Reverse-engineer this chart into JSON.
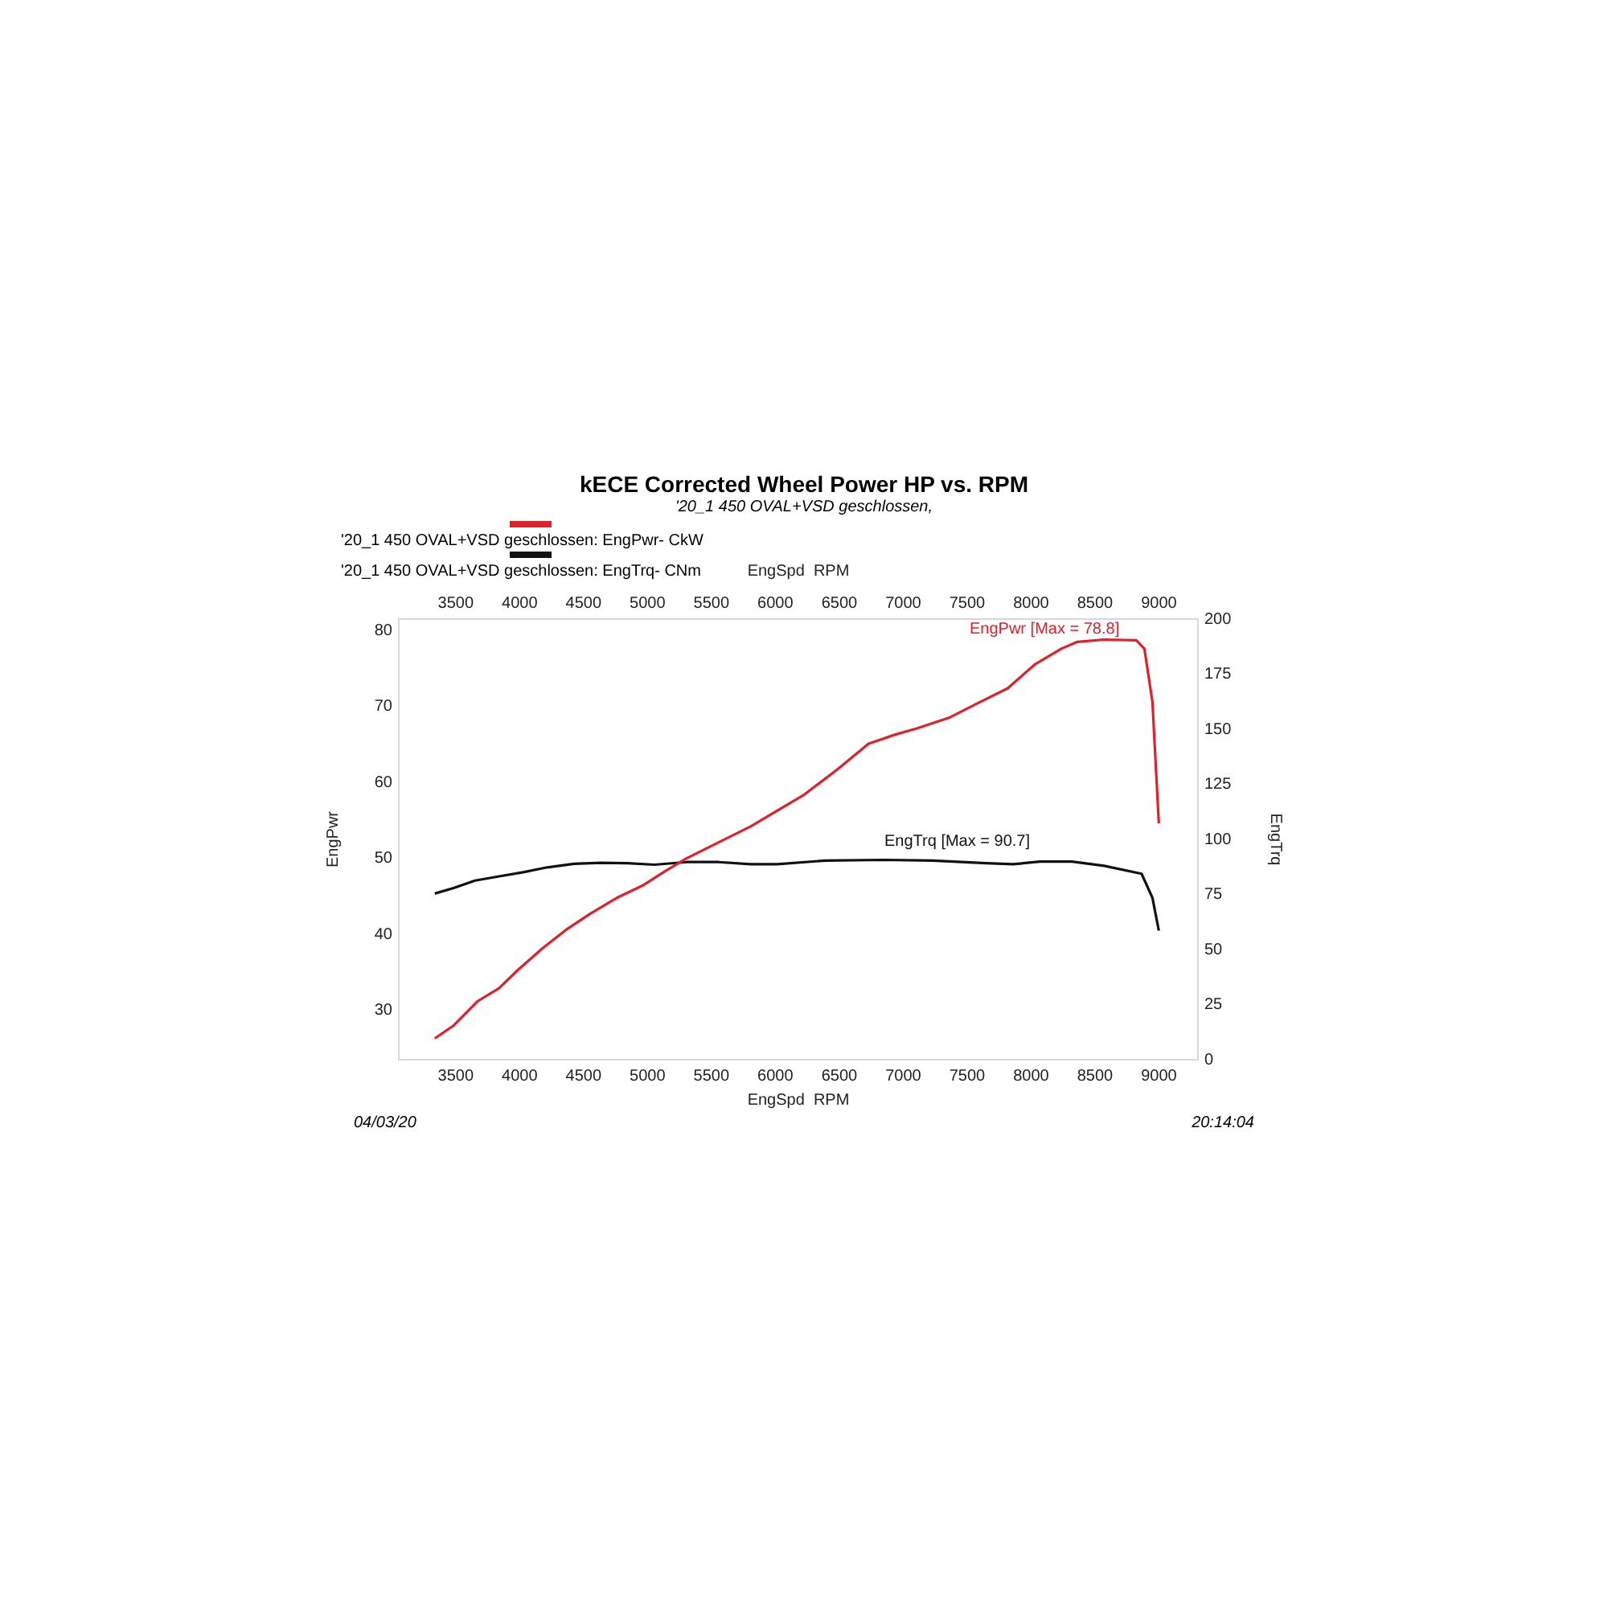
{
  "chart_data": {
    "type": "line",
    "title": "kECE Corrected Wheel Power HP vs. RPM",
    "subtitle": "'20_1 450 OVAL+VSD geschlossen,",
    "xlabel": "EngSpd  RPM",
    "x2label": "EngSpd  RPM",
    "ylabel": "EngPwr",
    "y2label": "EngTrq",
    "xlim": [
      3055,
      9305
    ],
    "xticks": [
      3500,
      4000,
      4500,
      5000,
      5500,
      6000,
      6500,
      7000,
      7500,
      8000,
      8500,
      9000
    ],
    "x2lim": [
      3055,
      9305
    ],
    "x2ticks": [
      3500,
      4000,
      4500,
      5000,
      5500,
      6000,
      6500,
      7000,
      7500,
      8000,
      8500,
      9000
    ],
    "ylim": [
      23.5,
      81.5
    ],
    "yticks": [
      30,
      40,
      50,
      60,
      70,
      80
    ],
    "y2lim": [
      0,
      200
    ],
    "y2ticks": [
      0,
      25,
      50,
      75,
      100,
      125,
      150,
      175,
      200
    ],
    "grid": false,
    "legend": "top left",
    "series": [
      {
        "name": "'20_1 450 OVAL+VSD geschlossen: EngPwr- CkW",
        "color": "#e0202a",
        "x": [
          3337,
          3484,
          3672,
          3839,
          3986,
          4175,
          4363,
          4551,
          4760,
          4970,
          5137,
          5305,
          5472,
          5639,
          5807,
          6016,
          6226,
          6477,
          6729,
          6938,
          7106,
          7357,
          7567,
          7818,
          8027,
          8236,
          8362,
          8571,
          8823,
          8886,
          8949,
          8999
        ],
        "values": [
          26.3,
          28.0,
          31.2,
          32.9,
          35.3,
          38.1,
          40.6,
          42.7,
          44.8,
          46.5,
          48.3,
          50.0,
          51.4,
          52.8,
          54.2,
          56.3,
          58.4,
          61.6,
          65.1,
          66.3,
          67.1,
          68.5,
          70.3,
          72.4,
          75.5,
          77.6,
          78.5,
          78.8,
          78.7,
          77.6,
          70.6,
          54.6
        ]
      },
      {
        "name": "'20_1 450 OVAL+VSD geschlossen: EngTrq- CNm",
        "color": "#111111",
        "axis": "y2",
        "x": [
          3337,
          3484,
          3651,
          3839,
          4028,
          4216,
          4426,
          4635,
          4844,
          5054,
          5305,
          5556,
          5807,
          6016,
          6394,
          6850,
          7231,
          7650,
          7859,
          8069,
          8320,
          8571,
          8864,
          8949,
          8999
        ],
        "values": [
          75.4,
          77.9,
          81.3,
          83.2,
          85.1,
          87.3,
          88.9,
          89.4,
          89.2,
          88.5,
          89.7,
          89.7,
          88.7,
          88.7,
          90.4,
          90.7,
          90.4,
          89.2,
          88.7,
          89.9,
          89.9,
          88.0,
          84.4,
          73.5,
          58.6
        ]
      }
    ],
    "annotations": [
      "EngPwr [Max = 78.8]",
      "EngTrq [Max = 90.7]",
      "04/03/20",
      "20:14:04"
    ]
  }
}
